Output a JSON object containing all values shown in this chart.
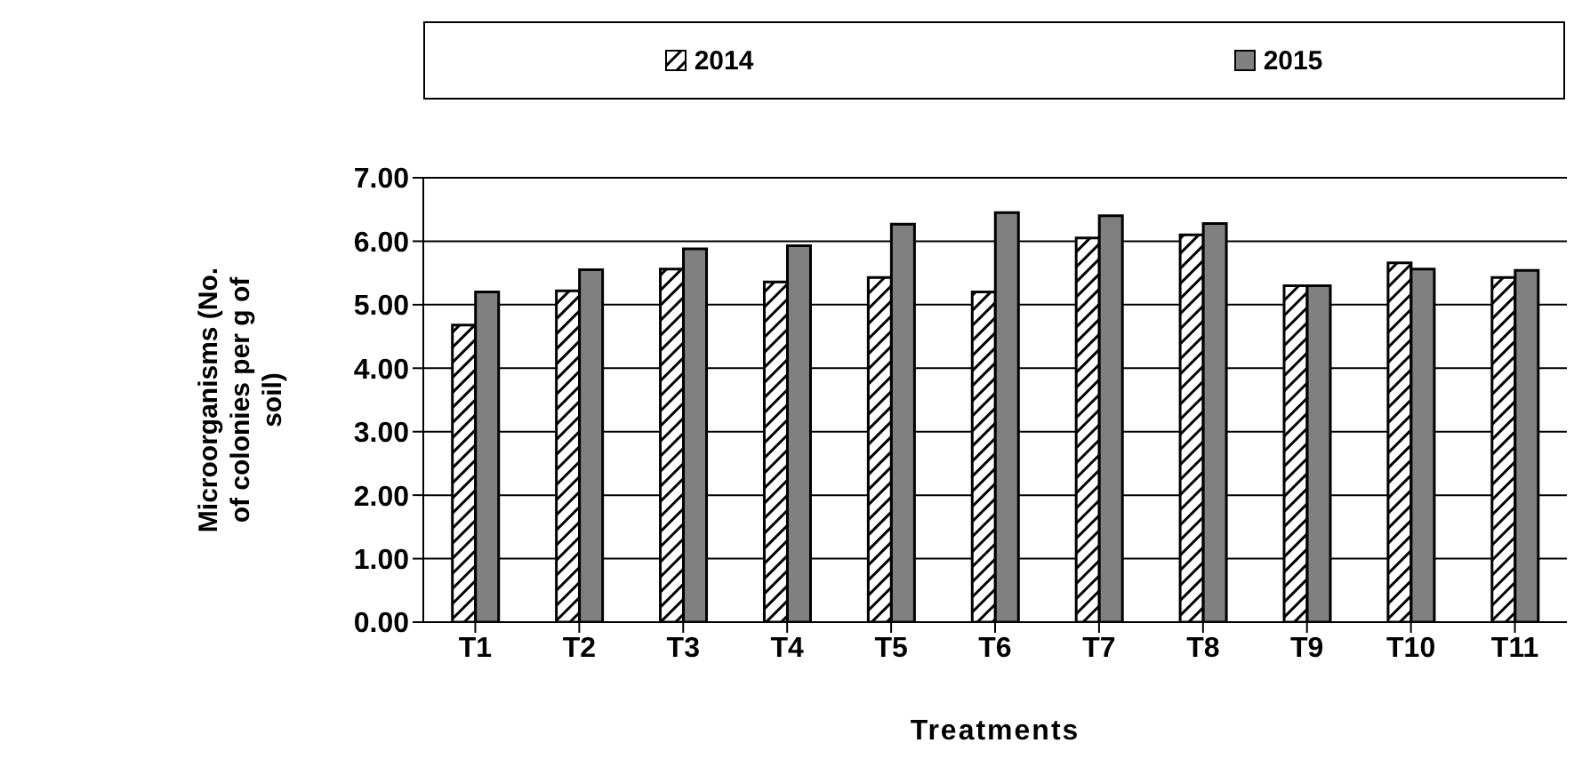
{
  "chart_data": {
    "type": "bar",
    "xlabel": "Treatments",
    "ylabel": "Microorganisms (No. of colonies per g of soil)",
    "categories": [
      "T1",
      "T2",
      "T3",
      "T4",
      "T5",
      "T6",
      "T7",
      "T8",
      "T9",
      "T10",
      "T11"
    ],
    "series": [
      {
        "name": "2014",
        "color": "#000000",
        "values": [
          4.68,
          5.22,
          5.56,
          5.36,
          5.43,
          5.2,
          6.05,
          6.1,
          5.3,
          5.66,
          5.43
        ]
      },
      {
        "name": "2015",
        "color": "#808080",
        "values": [
          5.2,
          5.55,
          5.88,
          5.93,
          6.27,
          6.45,
          6.4,
          6.28,
          5.3,
          5.56,
          5.54
        ]
      }
    ],
    "ylim": [
      0,
      7
    ],
    "yticks": [
      {
        "value": 0,
        "label": "0.00"
      },
      {
        "value": 1,
        "label": "1.00"
      },
      {
        "value": 2,
        "label": "2.00"
      },
      {
        "value": 3,
        "label": "3.00"
      },
      {
        "value": 4,
        "label": "4.00"
      },
      {
        "value": 5,
        "label": "5.00"
      },
      {
        "value": 6,
        "label": "6.00"
      },
      {
        "value": 7,
        "label": "7.00"
      }
    ],
    "grid": "y",
    "legend": "top"
  }
}
